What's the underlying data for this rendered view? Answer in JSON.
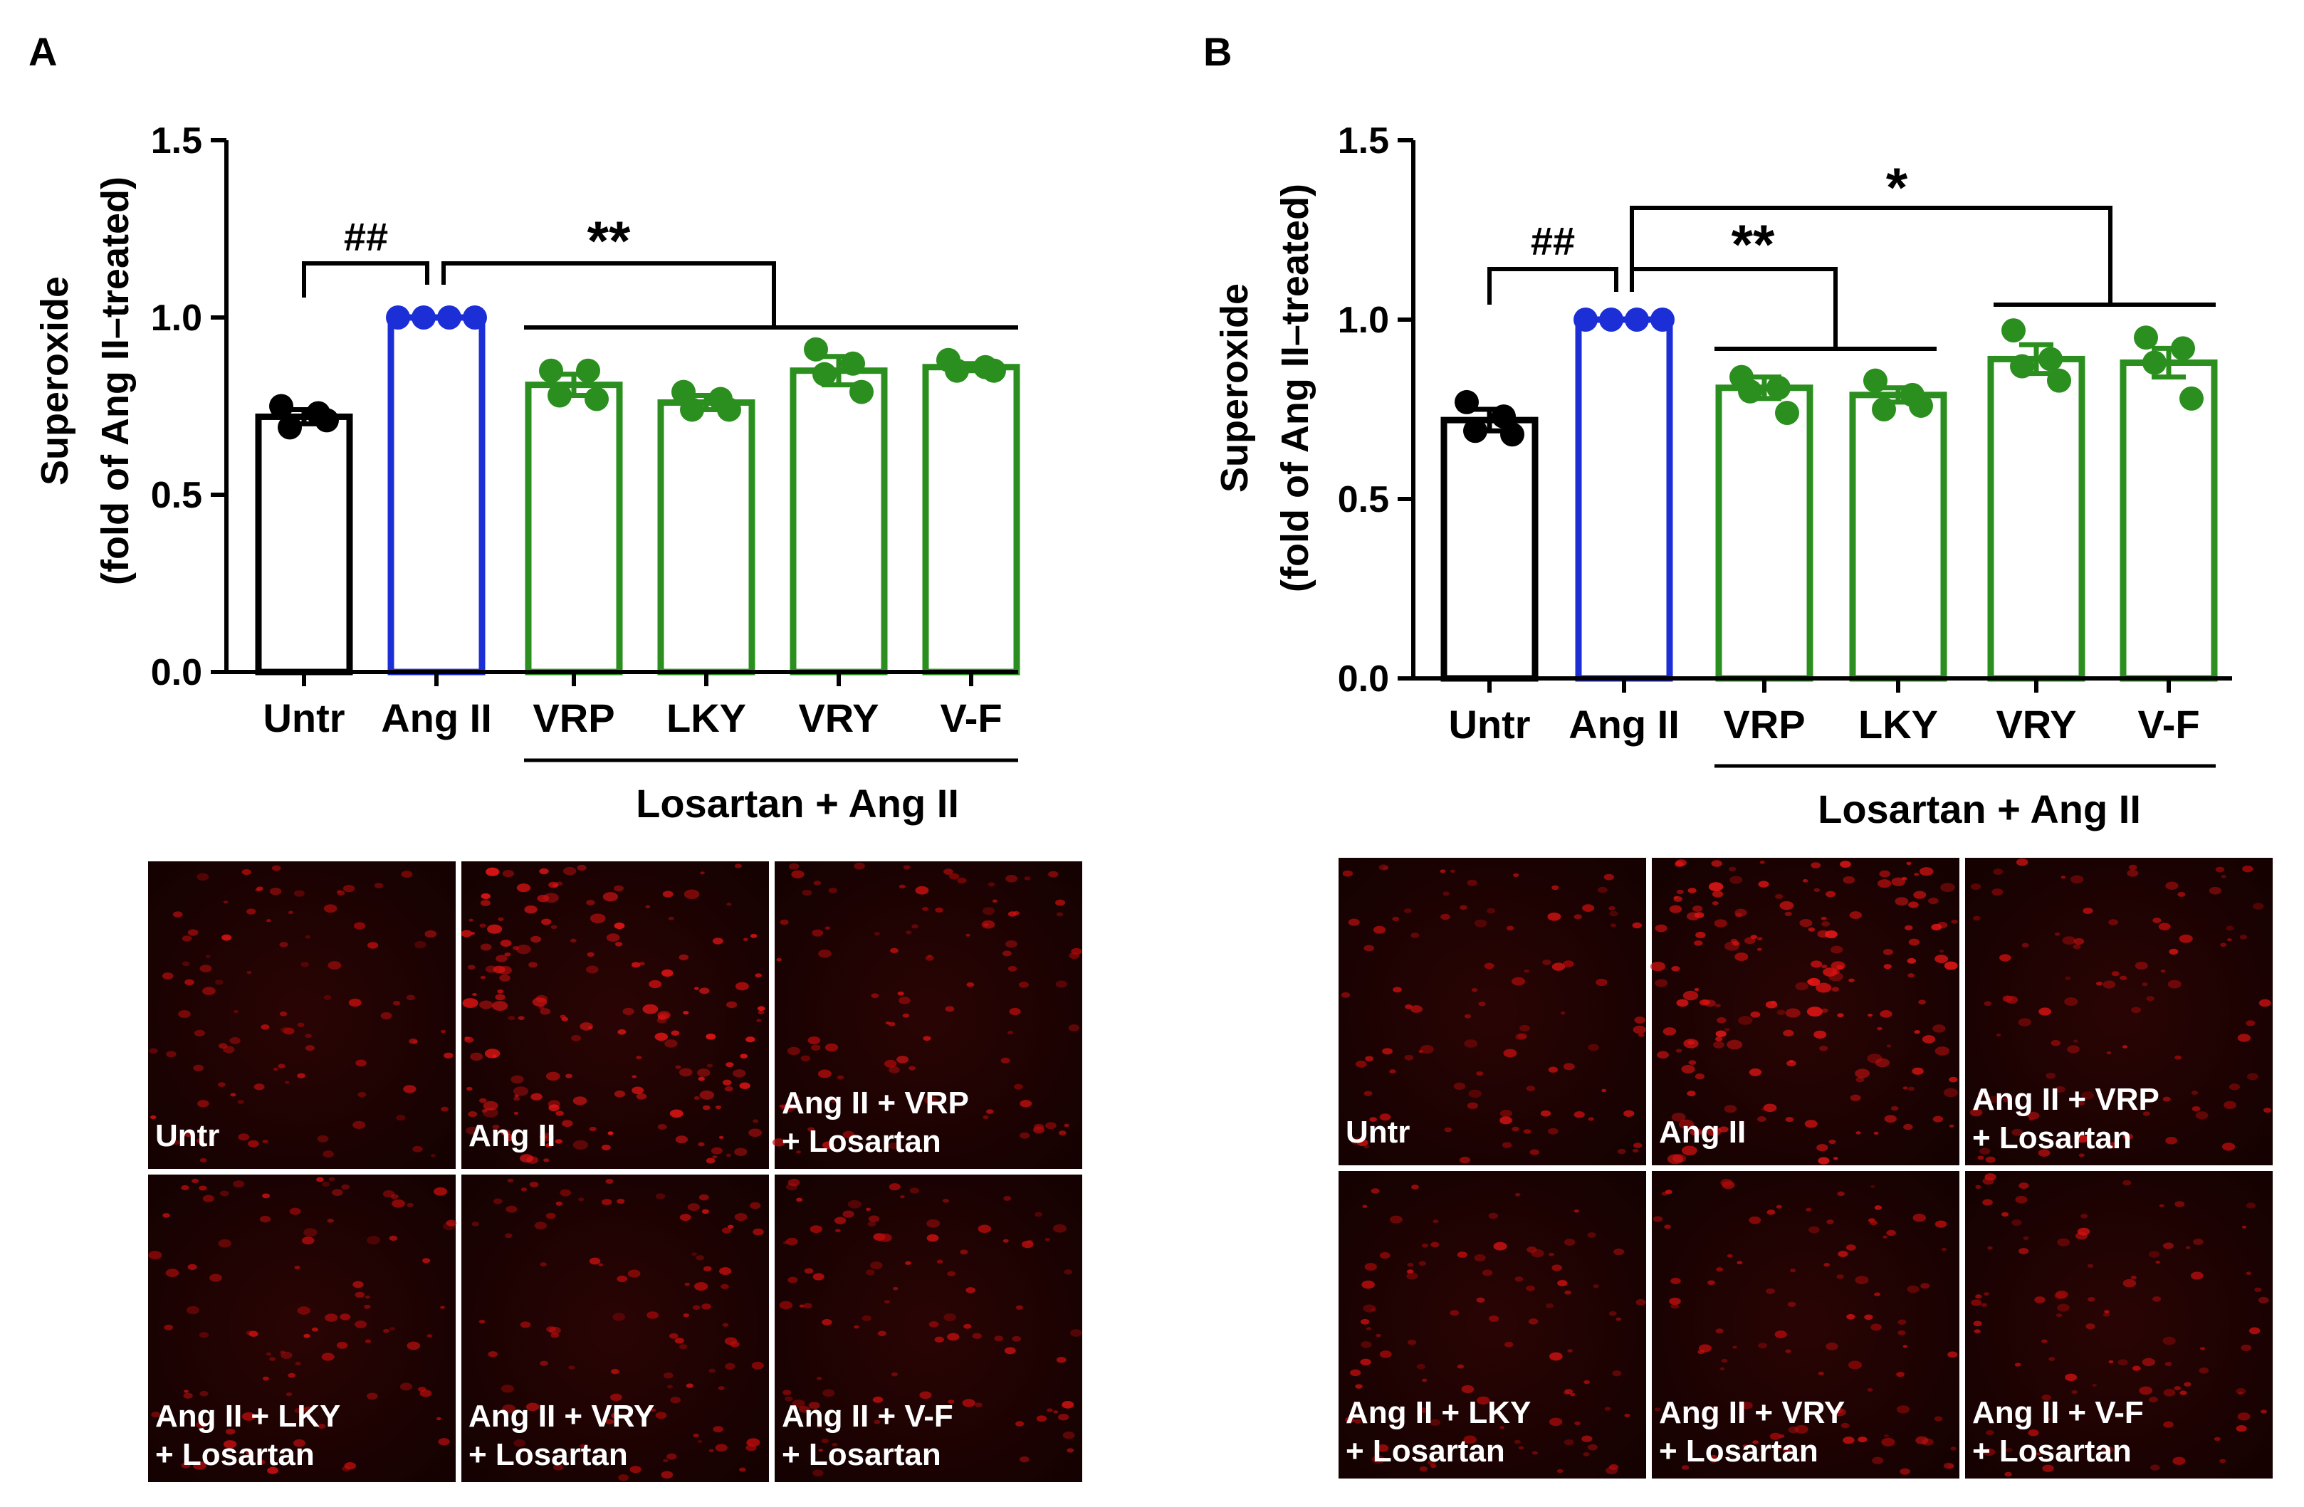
{
  "panels": [
    {
      "letter": "A",
      "ylabel": "Superoxide",
      "ylabel2": "(fold of Ang II–treated)",
      "group_label": "Losartan + Ang II",
      "comparisons": {
        "hash": "##",
        "double_star": "**"
      },
      "micrograph_labels": [
        [
          "Untr"
        ],
        [
          "Ang II"
        ],
        [
          "Ang II + VRP",
          "+ Losartan"
        ],
        [
          "Ang II + LKY",
          "+ Losartan"
        ],
        [
          "Ang II + VRY",
          "+ Losartan"
        ],
        [
          "Ang II + V-F",
          "+ Losartan"
        ]
      ]
    },
    {
      "letter": "B",
      "ylabel": "Superoxide",
      "ylabel2": "(fold of Ang II–treated)",
      "group_label": "Losartan + Ang II",
      "comparisons": {
        "hash": "##",
        "double_star": "**",
        "single_star": "*"
      },
      "micrograph_labels": [
        [
          "Untr"
        ],
        [
          "Ang II"
        ],
        [
          "Ang II + VRP",
          "+ Losartan"
        ],
        [
          "Ang II + LKY",
          "+ Losartan"
        ],
        [
          "Ang II + VRY",
          "+ Losartan"
        ],
        [
          "Ang II + V-F",
          "+ Losartan"
        ]
      ]
    }
  ],
  "colors": {
    "untr": "#000000",
    "ang": "#1c2fd6",
    "treat": "#2b8f1f",
    "axis": "#000000"
  },
  "chart_data": [
    {
      "type": "bar",
      "title": "A",
      "ylabel": "Superoxide (fold of Ang II–treated)",
      "categories": [
        "Untr",
        "Ang II",
        "VRP",
        "LKY",
        "VRY",
        "V-F"
      ],
      "values": [
        0.72,
        1.0,
        0.81,
        0.76,
        0.85,
        0.86
      ],
      "sem": [
        0.02,
        0.0,
        0.03,
        0.02,
        0.04,
        0.01
      ],
      "points": [
        [
          0.75,
          0.73,
          0.69,
          0.71
        ],
        [
          1.0,
          1.0,
          1.0,
          1.0
        ],
        [
          0.85,
          0.85,
          0.78,
          0.77
        ],
        [
          0.79,
          0.77,
          0.74,
          0.74
        ],
        [
          0.91,
          0.87,
          0.84,
          0.79
        ],
        [
          0.88,
          0.86,
          0.85,
          0.85
        ]
      ],
      "ylim": [
        0,
        1.5
      ],
      "yticks": [
        0.0,
        0.5,
        1.0,
        1.5
      ]
    },
    {
      "type": "bar",
      "title": "B",
      "ylabel": "Superoxide (fold of Ang II–treated)",
      "categories": [
        "Untr",
        "Ang II",
        "VRP",
        "LKY",
        "VRY",
        "V-F"
      ],
      "values": [
        0.72,
        1.0,
        0.81,
        0.79,
        0.89,
        0.88
      ],
      "sem": [
        0.03,
        0.0,
        0.03,
        0.02,
        0.04,
        0.04
      ],
      "points": [
        [
          0.77,
          0.73,
          0.69,
          0.68
        ],
        [
          1.0,
          1.0,
          1.0,
          1.0
        ],
        [
          0.84,
          0.81,
          0.8,
          0.74
        ],
        [
          0.83,
          0.79,
          0.75,
          0.76
        ],
        [
          0.97,
          0.89,
          0.87,
          0.83
        ],
        [
          0.95,
          0.92,
          0.88,
          0.78
        ]
      ],
      "ylim": [
        0,
        1.5
      ],
      "yticks": [
        0.0,
        0.5,
        1.0,
        1.5
      ]
    }
  ]
}
